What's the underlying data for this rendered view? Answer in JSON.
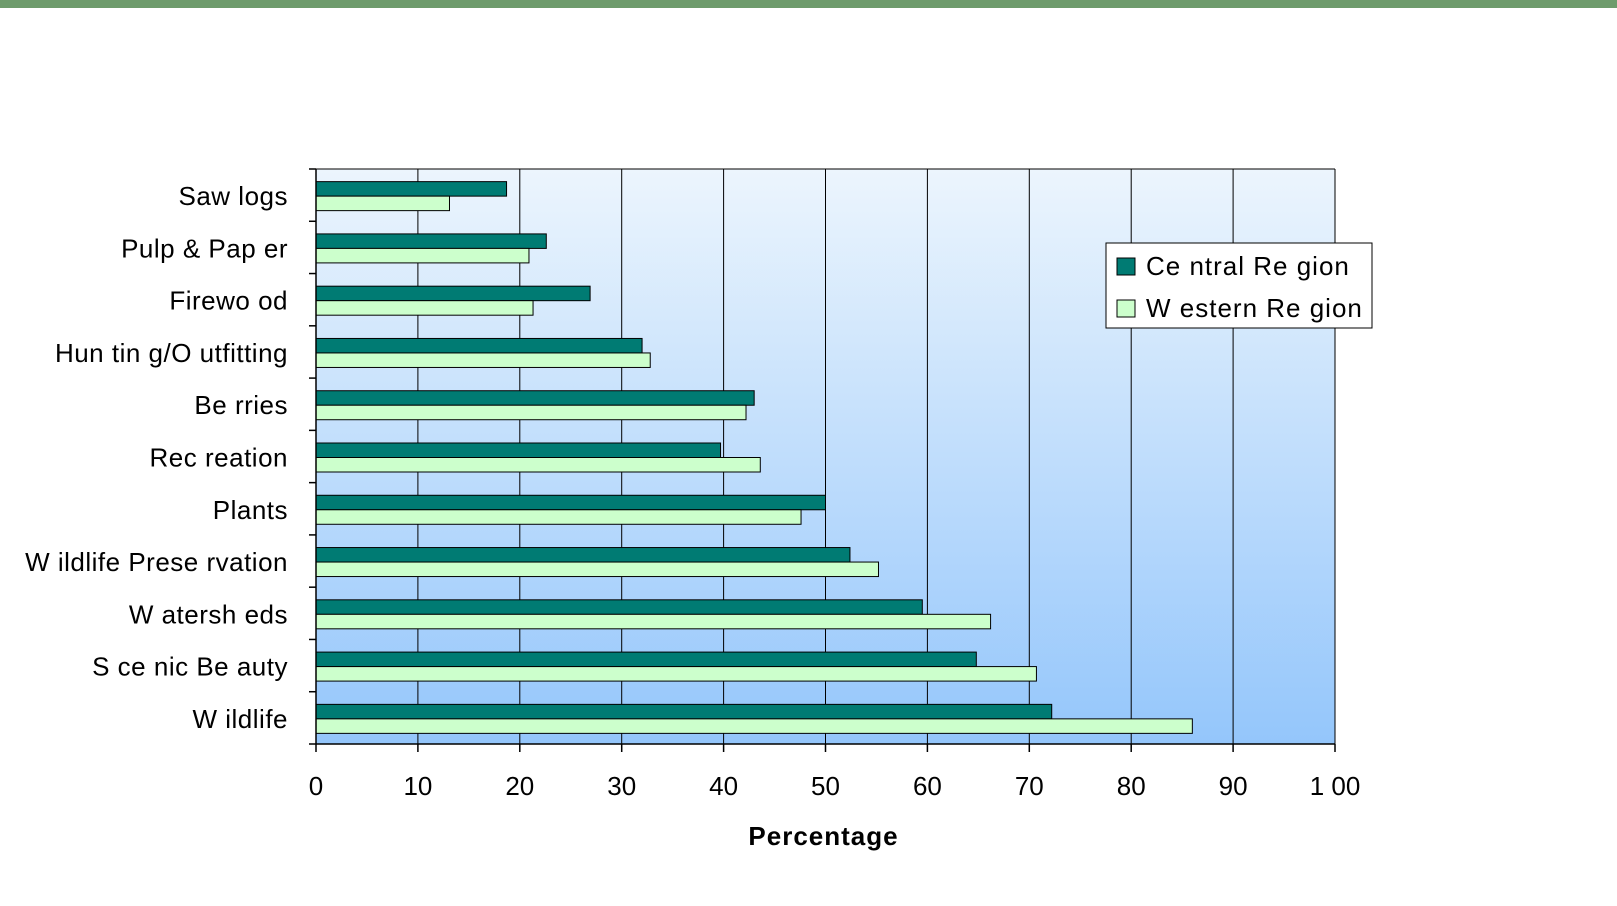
{
  "colors": {
    "top_bar": "#6e9b6c",
    "plot_bg_top": "#ecf5fd",
    "plot_bg_bottom": "#94c6fb",
    "gridline": "#000000"
  },
  "chart_data": {
    "type": "bar",
    "orientation": "horizontal",
    "title": "",
    "xlabel": "Percentage",
    "ylabel": "",
    "xlim": [
      0,
      100
    ],
    "x_ticks": [
      0,
      10,
      20,
      30,
      40,
      50,
      60,
      70,
      80,
      90,
      100
    ],
    "x_tick_labels": [
      "0",
      "10",
      "20",
      "30",
      "40",
      "50",
      "60",
      "70",
      "80",
      "90",
      "1 00"
    ],
    "grid": "vertical",
    "legend_position": "top-right",
    "categories": [
      "Saw logs",
      "Pulp & Pap er",
      "Firewo od",
      "Hun tin g/O utfitting",
      "Be rries",
      "Rec reation",
      "Plants",
      "W ildlife Prese rvation",
      "W atersh eds",
      "S ce nic Be auty",
      "W ildlife"
    ],
    "series": [
      {
        "name": "Ce ntral Re gion",
        "color": "#007b73",
        "values": [
          18.7,
          22.6,
          26.9,
          32.0,
          43.0,
          39.7,
          50.0,
          52.4,
          59.5,
          64.8,
          72.2
        ]
      },
      {
        "name": "W estern Re gion",
        "color": "#ccffcc",
        "values": [
          13.1,
          20.9,
          21.3,
          32.8,
          42.2,
          43.6,
          47.6,
          55.2,
          66.2,
          70.7,
          86.0
        ]
      }
    ]
  }
}
